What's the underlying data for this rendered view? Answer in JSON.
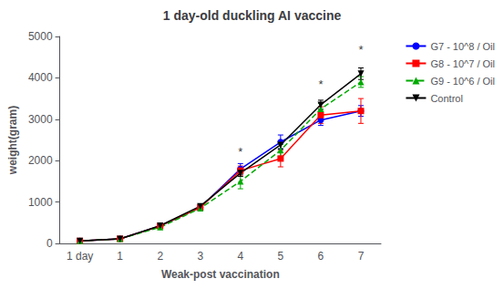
{
  "chart_data": {
    "type": "line",
    "title": "1 day-old duckling AI vaccine",
    "xlabel": "Weak-post vaccination",
    "ylabel": "weight(gram)",
    "categories": [
      "1 day",
      "1",
      "2",
      "3",
      "4",
      "5",
      "6",
      "7"
    ],
    "series": [
      {
        "name": "G7 - 10^8 / Oil",
        "color": "#0000FF",
        "marker": "circle",
        "line_style": "solid",
        "values": [
          60,
          110,
          420,
          870,
          1800,
          2450,
          2980,
          3200
        ],
        "yerr": [
          8,
          12,
          30,
          55,
          130,
          170,
          130,
          130
        ]
      },
      {
        "name": "G8 - 10^7 / Oil",
        "color": "#FF0000",
        "marker": "square",
        "line_style": "solid",
        "values": [
          60,
          110,
          420,
          870,
          1760,
          2050,
          3100,
          3200
        ],
        "yerr": [
          8,
          12,
          30,
          55,
          110,
          200,
          200,
          300
        ]
      },
      {
        "name": "G9 - 10^6 / Oil",
        "color": "#00AA00",
        "marker": "triangle_up",
        "line_style": "dashed",
        "values": [
          60,
          110,
          390,
          850,
          1500,
          2250,
          3250,
          3900
        ],
        "yerr": [
          8,
          12,
          25,
          50,
          180,
          140,
          130,
          130
        ]
      },
      {
        "name": "Control",
        "color": "#000000",
        "marker": "triangle_down",
        "line_style": "solid",
        "values": [
          60,
          110,
          430,
          900,
          1700,
          2380,
          3350,
          4100
        ],
        "yerr": [
          8,
          12,
          30,
          50,
          80,
          90,
          110,
          140
        ]
      }
    ],
    "annotations": [
      {
        "text": "*",
        "x": "4",
        "y": 2060
      },
      {
        "text": "*",
        "x": "6",
        "y": 3700
      },
      {
        "text": "*",
        "x": "7",
        "y": 4530
      }
    ],
    "ylim": [
      0,
      5000
    ],
    "yticks": [
      0,
      1000,
      2000,
      3000,
      4000,
      5000
    ],
    "grid": false,
    "legend": "upper right"
  }
}
